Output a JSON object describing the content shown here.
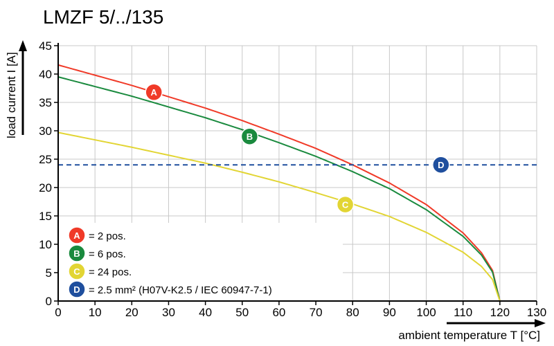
{
  "chart_data": {
    "type": "line",
    "title": "LMZF 5/../135",
    "xlabel": "ambient temperature T [°C]",
    "ylabel": "load current I [A]",
    "xlim": [
      0,
      130
    ],
    "ylim": [
      0,
      45
    ],
    "xticks": [
      0,
      10,
      20,
      30,
      40,
      50,
      60,
      70,
      80,
      90,
      100,
      110,
      120,
      130
    ],
    "yticks": [
      0,
      5,
      10,
      15,
      20,
      25,
      30,
      35,
      40,
      45
    ],
    "grid": true,
    "legend_placement": "bottom-left",
    "series": [
      {
        "name": "A",
        "label": "= 2 pos.",
        "color": "#f03a28",
        "style": "solid",
        "x": [
          0,
          10,
          20,
          30,
          40,
          50,
          60,
          70,
          80,
          90,
          100,
          110,
          115,
          118,
          120
        ],
        "y": [
          41.6,
          39.8,
          38.0,
          36.0,
          34.0,
          31.8,
          29.4,
          26.9,
          24.0,
          20.8,
          17.0,
          12.0,
          8.5,
          5.4,
          0
        ]
      },
      {
        "name": "B",
        "label": "= 6 pos.",
        "color": "#1a8a3e",
        "style": "solid",
        "x": [
          0,
          10,
          20,
          30,
          40,
          50,
          60,
          70,
          80,
          90,
          100,
          110,
          115,
          118,
          120
        ],
        "y": [
          39.5,
          37.8,
          36.1,
          34.2,
          32.3,
          30.2,
          27.9,
          25.5,
          22.8,
          19.8,
          16.1,
          11.4,
          8.1,
          5.1,
          0
        ]
      },
      {
        "name": "C",
        "label": "= 24 pos.",
        "color": "#e2d534",
        "style": "solid",
        "x": [
          0,
          10,
          20,
          30,
          40,
          50,
          60,
          70,
          80,
          90,
          100,
          110,
          115,
          118,
          120
        ],
        "y": [
          29.7,
          28.4,
          27.1,
          25.7,
          24.3,
          22.7,
          21.0,
          19.1,
          17.1,
          14.9,
          12.1,
          8.6,
          6.1,
          3.8,
          0
        ]
      },
      {
        "name": "D",
        "label": "= 2.5 mm² (H07V-K2.5 / IEC 60947-7-1)",
        "color": "#1f4f9e",
        "style": "dashed",
        "x": [
          0,
          130
        ],
        "y": [
          24,
          24
        ]
      }
    ],
    "markers": [
      {
        "series": "A",
        "x": 26,
        "y": 36.8
      },
      {
        "series": "B",
        "x": 52,
        "y": 29
      },
      {
        "series": "C",
        "x": 78,
        "y": 17
      },
      {
        "series": "D",
        "x": 104,
        "y": 24
      }
    ]
  }
}
